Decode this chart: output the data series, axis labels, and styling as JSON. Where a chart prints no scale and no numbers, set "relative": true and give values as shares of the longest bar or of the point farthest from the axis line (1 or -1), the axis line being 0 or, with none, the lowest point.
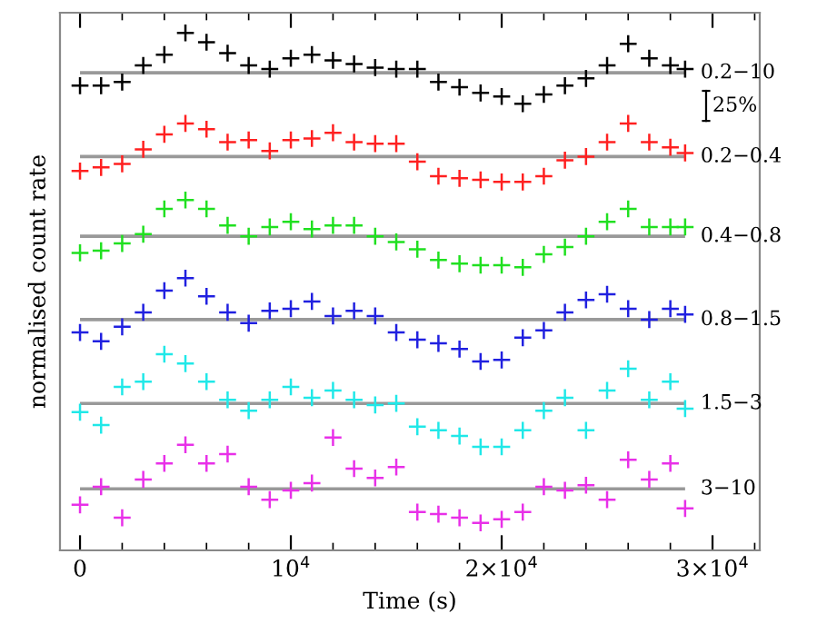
{
  "chart_data": {
    "type": "scatter",
    "relative": true,
    "marker": "cross",
    "grid": false,
    "legend": false,
    "tick_labels": "x",
    "xlabel": "Time (s)",
    "ylabel": "normalised count rate",
    "xlim": [
      -950,
      32240
    ],
    "xticks": [
      0,
      {
        "value": 10000,
        "label": "10$^{4}$"
      },
      {
        "value": 20000,
        "label": "2×10$^{4}$"
      },
      {
        "value": 30000,
        "label": "3×10$^{4}$"
      }
    ],
    "x": [
      0,
      1000,
      2000,
      3000,
      4000,
      5000,
      6000,
      7000,
      8000,
      9000,
      10000,
      11000,
      12000,
      13000,
      14000,
      15000,
      16000,
      17000,
      18000,
      19000,
      20000,
      21000,
      22000,
      23000,
      24000,
      25000,
      26000,
      27000,
      28000,
      28700
    ],
    "series": [
      {
        "name": "0.2−10",
        "color": "#000000",
        "values": [
          0.898,
          0.898,
          0.905,
          0.937,
          0.958,
          1.0,
          0.982,
          0.961,
          0.937,
          0.93,
          0.951,
          0.958,
          0.947,
          0.94,
          0.933,
          0.93,
          0.93,
          0.905,
          0.895,
          0.884,
          0.877,
          0.863,
          0.881,
          0.898,
          0.912,
          0.937,
          0.979,
          0.951,
          0.937,
          0.93
        ]
      },
      {
        "name": "0.2−0.4",
        "color": "#ff2020",
        "values": [
          0.733,
          0.74,
          0.747,
          0.775,
          0.804,
          0.825,
          0.814,
          0.789,
          0.793,
          0.772,
          0.793,
          0.796,
          0.807,
          0.789,
          0.786,
          0.786,
          0.751,
          0.723,
          0.719,
          0.716,
          0.712,
          0.712,
          0.723,
          0.754,
          0.761,
          0.789,
          0.825,
          0.789,
          0.779,
          0.768
        ]
      },
      {
        "name": "0.4−0.8",
        "color": "#20e020",
        "values": [
          0.575,
          0.579,
          0.593,
          0.611,
          0.66,
          0.677,
          0.66,
          0.628,
          0.607,
          0.625,
          0.635,
          0.621,
          0.628,
          0.628,
          0.607,
          0.596,
          0.582,
          0.561,
          0.554,
          0.551,
          0.551,
          0.547,
          0.572,
          0.586,
          0.607,
          0.635,
          0.66,
          0.625,
          0.625,
          0.625
        ]
      },
      {
        "name": "0.8−1.5",
        "color": "#2020e0",
        "values": [
          0.421,
          0.404,
          0.432,
          0.46,
          0.502,
          0.526,
          0.491,
          0.46,
          0.439,
          0.463,
          0.467,
          0.481,
          0.453,
          0.463,
          0.453,
          0.421,
          0.407,
          0.4,
          0.389,
          0.365,
          0.368,
          0.411,
          0.425,
          0.46,
          0.484,
          0.495,
          0.467,
          0.446,
          0.467,
          0.456
        ]
      },
      {
        "name": "1.5−3",
        "color": "#20e8e8",
        "values": [
          0.267,
          0.242,
          0.316,
          0.326,
          0.379,
          0.361,
          0.326,
          0.291,
          0.27,
          0.291,
          0.316,
          0.295,
          0.309,
          0.291,
          0.281,
          0.284,
          0.239,
          0.232,
          0.221,
          0.2,
          0.2,
          0.232,
          0.27,
          0.295,
          0.232,
          0.309,
          0.351,
          0.291,
          0.326,
          0.274
        ]
      },
      {
        "name": "3−10",
        "color": "#e830e8",
        "values": [
          0.088,
          0.123,
          0.063,
          0.137,
          0.168,
          0.204,
          0.168,
          0.186,
          0.123,
          0.098,
          0.116,
          0.13,
          0.218,
          0.158,
          0.14,
          0.161,
          0.074,
          0.07,
          0.063,
          0.053,
          0.06,
          0.074,
          0.123,
          0.116,
          0.126,
          0.098,
          0.175,
          0.137,
          0.168,
          0.081
        ]
      }
    ],
    "ref_lines": [
      {
        "axis": "y",
        "value": 0.923,
        "color": "#999999"
      },
      {
        "axis": "y",
        "value": 0.761,
        "color": "#999999"
      },
      {
        "axis": "y",
        "value": 0.607,
        "color": "#999999"
      },
      {
        "axis": "y",
        "value": 0.446,
        "color": "#999999"
      },
      {
        "axis": "y",
        "value": 0.284,
        "color": "#999999"
      },
      {
        "axis": "y",
        "value": 0.119,
        "color": "#999999"
      }
    ],
    "annotations": [
      "25%"
    ]
  }
}
